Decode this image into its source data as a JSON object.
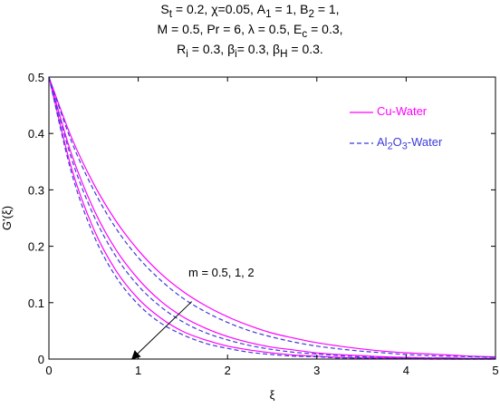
{
  "title_lines": [
    "S<sub>t</sub> = 0.2, χ=0.05, A<sub>1</sub> = 1, B<sub>2</sub> = 1,",
    "M = 0.5, Pr = 6, λ = 0.5, E<sub>c</sub> = 0.3,",
    "R<sub>i</sub> = 0.3, β<sub>i</sub>= 0.3, β<sub>H</sub> = 0.3."
  ],
  "chart_data": {
    "type": "line",
    "xlabel": "ξ",
    "ylabel": "G'(ξ)",
    "xlim": [
      0,
      5
    ],
    "ylim": [
      0,
      0.5
    ],
    "xticks": [
      0,
      1,
      2,
      3,
      4,
      5
    ],
    "yticks": [
      0,
      0.1,
      0.2,
      0.3,
      0.4,
      0.5
    ],
    "grid": false,
    "legend_position": "top-right",
    "x": [
      0,
      0.25,
      0.5,
      0.75,
      1,
      1.25,
      1.5,
      1.75,
      2,
      2.25,
      2.5,
      2.75,
      3,
      3.25,
      3.5,
      3.75,
      4,
      4.25,
      4.5,
      4.75,
      5
    ],
    "series": [
      {
        "name": "Cu-Water",
        "m": 0.5,
        "color": "#ff00ff",
        "dash": "solid",
        "values": [
          0.5,
          0.394,
          0.311,
          0.245,
          0.193,
          0.152,
          0.12,
          0.095,
          0.075,
          0.059,
          0.046,
          0.037,
          0.029,
          0.023,
          0.018,
          0.014,
          0.011,
          0.009,
          0.007,
          0.005,
          0.004
        ]
      },
      {
        "name": "Al2O3-Water",
        "m": 0.5,
        "color": "#3b3bd9",
        "dash": "dashed",
        "values": [
          0.5,
          0.387,
          0.3,
          0.232,
          0.18,
          0.14,
          0.108,
          0.084,
          0.065,
          0.05,
          0.039,
          0.03,
          0.023,
          0.018,
          0.014,
          0.011,
          0.008,
          0.006,
          0.005,
          0.004,
          0.003
        ]
      },
      {
        "name": "Cu-Water",
        "m": 1,
        "color": "#ff00ff",
        "dash": "solid",
        "values": [
          0.5,
          0.365,
          0.266,
          0.194,
          0.142,
          0.103,
          0.075,
          0.055,
          0.04,
          0.029,
          0.021,
          0.016,
          0.011,
          0.008,
          0.006,
          0.004,
          0.003,
          0.002,
          0.002,
          0.001,
          0.001
        ]
      },
      {
        "name": "Al2O3-Water",
        "m": 1,
        "color": "#3b3bd9",
        "dash": "dashed",
        "values": [
          0.5,
          0.357,
          0.255,
          0.182,
          0.13,
          0.093,
          0.066,
          0.047,
          0.034,
          0.024,
          0.017,
          0.012,
          0.009,
          0.006,
          0.004,
          0.003,
          0.002,
          0.002,
          0.001,
          0.001,
          0.001
        ]
      },
      {
        "name": "Cu-Water",
        "m": 2,
        "color": "#ff00ff",
        "dash": "solid",
        "values": [
          0.5,
          0.34,
          0.231,
          0.157,
          0.107,
          0.073,
          0.049,
          0.034,
          0.023,
          0.016,
          0.011,
          0.007,
          0.005,
          0.003,
          0.002,
          0.002,
          0.001,
          0.001,
          0.0,
          0.0,
          0.0
        ]
      },
      {
        "name": "Al2O3-Water",
        "m": 2,
        "color": "#3b3bd9",
        "dash": "dashed",
        "values": [
          0.5,
          0.332,
          0.22,
          0.146,
          0.097,
          0.064,
          0.043,
          0.028,
          0.019,
          0.012,
          0.008,
          0.005,
          0.004,
          0.002,
          0.002,
          0.001,
          0.001,
          0.0,
          0.0,
          0.0,
          0.0
        ]
      }
    ],
    "legend": [
      {
        "label": "Cu-Water",
        "color": "#ff00ff",
        "dash": "solid"
      },
      {
        "label": "Al<sub>2</sub>O<sub>3</sub>-Water",
        "color": "#3b3bd9",
        "dash": "dashed"
      }
    ],
    "annotation": {
      "text": "m = 0.5, 1, 2",
      "arrow_from": [
        1.6,
        0.102
      ],
      "arrow_to": [
        0.93,
        0.0
      ]
    }
  }
}
